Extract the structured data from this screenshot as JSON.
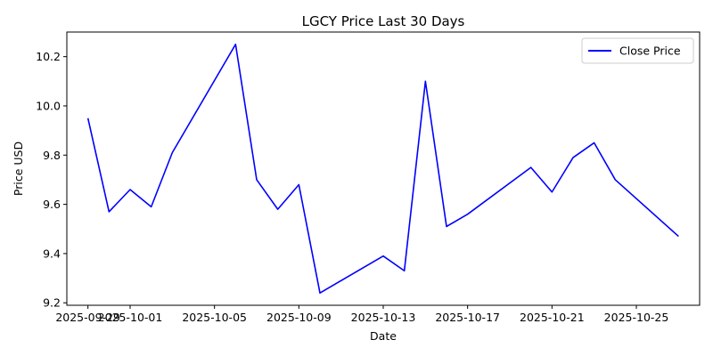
{
  "chart_data": {
    "type": "line",
    "title": "LGCY Price Last 30 Days",
    "xlabel": "Date",
    "ylabel": "Price USD",
    "x_type": "date",
    "xlim": [
      "2025-09-28",
      "2025-10-28"
    ],
    "ylim": [
      9.19,
      10.3
    ],
    "x_ticks": [
      {
        "date": "2025-09-29",
        "label": "2025-09-29"
      },
      {
        "date": "2025-10-01",
        "label": "2025-10-01"
      },
      {
        "date": "2025-10-05",
        "label": "2025-10-05"
      },
      {
        "date": "2025-10-09",
        "label": "2025-10-09"
      },
      {
        "date": "2025-10-13",
        "label": "2025-10-13"
      },
      {
        "date": "2025-10-17",
        "label": "2025-10-17"
      },
      {
        "date": "2025-10-21",
        "label": "2025-10-21"
      },
      {
        "date": "2025-10-25",
        "label": "2025-10-25"
      }
    ],
    "y_ticks": [
      {
        "value": 9.2,
        "label": "9.2"
      },
      {
        "value": 9.4,
        "label": "9.4"
      },
      {
        "value": 9.6,
        "label": "9.6"
      },
      {
        "value": 9.8,
        "label": "9.8"
      },
      {
        "value": 10.0,
        "label": "10.0"
      },
      {
        "value": 10.2,
        "label": "10.2"
      }
    ],
    "grid": false,
    "legend_position": "top-right",
    "series": [
      {
        "name": "Close Price",
        "color": "#0000ff",
        "points": [
          {
            "x": "2025-09-29",
            "y": 9.95
          },
          {
            "x": "2025-09-30",
            "y": 9.57
          },
          {
            "x": "2025-10-01",
            "y": 9.66
          },
          {
            "x": "2025-10-02",
            "y": 9.59
          },
          {
            "x": "2025-10-03",
            "y": 9.81
          },
          {
            "x": "2025-10-06",
            "y": 10.25
          },
          {
            "x": "2025-10-07",
            "y": 9.7
          },
          {
            "x": "2025-10-08",
            "y": 9.58
          },
          {
            "x": "2025-10-09",
            "y": 9.68
          },
          {
            "x": "2025-10-10",
            "y": 9.24
          },
          {
            "x": "2025-10-13",
            "y": 9.39
          },
          {
            "x": "2025-10-14",
            "y": 9.33
          },
          {
            "x": "2025-10-15",
            "y": 10.1
          },
          {
            "x": "2025-10-16",
            "y": 9.51
          },
          {
            "x": "2025-10-17",
            "y": 9.56
          },
          {
            "x": "2025-10-20",
            "y": 9.75
          },
          {
            "x": "2025-10-21",
            "y": 9.65
          },
          {
            "x": "2025-10-22",
            "y": 9.79
          },
          {
            "x": "2025-10-23",
            "y": 9.85
          },
          {
            "x": "2025-10-24",
            "y": 9.7
          },
          {
            "x": "2025-10-27",
            "y": 9.47
          }
        ]
      }
    ]
  }
}
